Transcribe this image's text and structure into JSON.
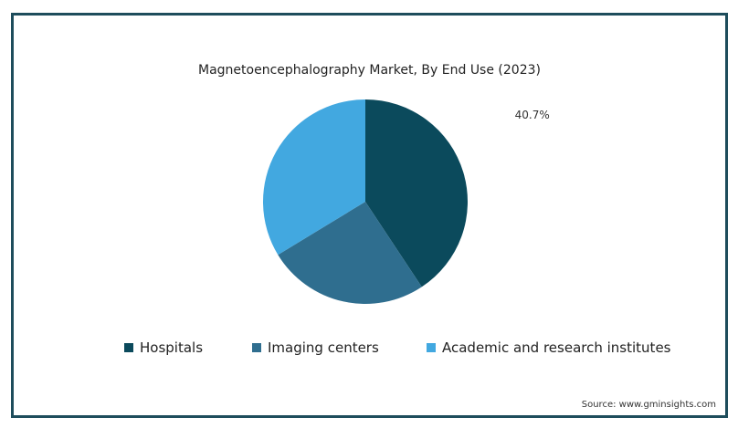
{
  "chart_data": {
    "type": "pie",
    "title": "Magnetoencephalography Market, By End Use (2023)",
    "categories": [
      "Hospitals",
      "Imaging centers",
      "Academic and research institutes"
    ],
    "values": [
      40.7,
      25.6,
      33.7
    ],
    "colors": [
      "#0b4a5c",
      "#2f6e8f",
      "#42a8e0"
    ],
    "data_labels": [
      "40.7%",
      "",
      ""
    ],
    "legend_position": "bottom"
  },
  "source": "Source: www.gminsights.com"
}
